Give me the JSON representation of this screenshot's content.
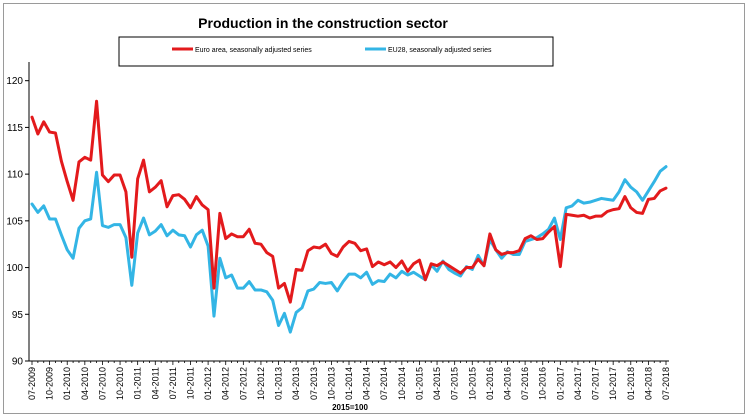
{
  "chart_data": {
    "type": "line",
    "title": "Production in the construction sector",
    "xlabel": "2015=100",
    "ylabel": "",
    "ylim": [
      90,
      122
    ],
    "yticks": [
      90,
      95,
      100,
      105,
      110,
      115,
      120
    ],
    "xtick_labels": [
      "07-2009",
      "10-2009",
      "01-2010",
      "04-2010",
      "07-2010",
      "10-2010",
      "01-2011",
      "04-2011",
      "07-2011",
      "10-2011",
      "01-2012",
      "04-2012",
      "07-2012",
      "10-2012",
      "01-2013",
      "04-2013",
      "07-2013",
      "10-2013",
      "01-2014",
      "04-2014",
      "07-2014",
      "10-2014",
      "01-2015",
      "04-2015",
      "07-2015",
      "10-2015",
      "01-2016",
      "04-2016",
      "07-2016",
      "10-2016",
      "01-2017",
      "04-2017",
      "07-2017",
      "10-2017",
      "01-2018",
      "04-2018",
      "07-2018"
    ],
    "grid": false,
    "legend_position": "top",
    "series": [
      {
        "name": "Euro area, seasonally adjusted series",
        "color": "#e31a1c",
        "values": [
          116.1,
          114.3,
          115.6,
          114.5,
          114.4,
          111.4,
          109.2,
          107.2,
          111.3,
          111.8,
          111.5,
          117.8,
          109.9,
          109.2,
          109.9,
          109.9,
          108.1,
          101.1,
          109.5,
          111.5,
          108.1,
          108.6,
          109.3,
          106.5,
          107.7,
          107.8,
          107.3,
          106.4,
          107.6,
          106.7,
          106.2,
          97.8,
          105.8,
          103.1,
          103.6,
          103.3,
          103.3,
          104.1,
          102.6,
          102.5,
          101.6,
          101.2,
          97.8,
          98.3,
          96.3,
          99.8,
          99.7,
          101.8,
          102.2,
          102.1,
          102.5,
          101.5,
          101.2,
          102.2,
          102.8,
          102.6,
          101.8,
          102.0,
          100.1,
          100.6,
          100.3,
          100.6,
          100.0,
          100.7,
          99.6,
          100.4,
          100.8,
          98.7,
          100.4,
          100.2,
          100.6,
          100.2,
          99.8,
          99.4,
          100.0,
          100.0,
          100.9,
          100.2,
          103.6,
          101.9,
          101.4,
          101.6,
          101.6,
          101.8,
          103.1,
          103.4,
          103.0,
          103.1,
          103.8,
          104.4,
          100.1,
          105.7,
          105.6,
          105.5,
          105.6,
          105.3,
          105.5,
          105.5,
          106.0,
          106.2,
          106.3,
          107.6,
          106.4,
          105.9,
          105.8,
          107.3,
          107.4,
          108.2,
          108.5
        ]
      },
      {
        "name": "EU28, seasonally adjusted series",
        "color": "#33b5e5",
        "values": [
          106.8,
          105.9,
          106.6,
          105.2,
          105.2,
          103.5,
          101.9,
          101.0,
          104.2,
          105.0,
          105.2,
          110.2,
          104.5,
          104.3,
          104.6,
          104.6,
          103.2,
          98.1,
          103.7,
          105.3,
          103.5,
          103.9,
          104.6,
          103.4,
          104.0,
          103.5,
          103.4,
          102.2,
          103.5,
          104.0,
          102.3,
          94.8,
          101.0,
          98.9,
          99.2,
          97.8,
          97.8,
          98.5,
          97.6,
          97.6,
          97.4,
          96.5,
          93.8,
          95.1,
          93.1,
          95.2,
          95.7,
          97.5,
          97.7,
          98.4,
          98.3,
          98.4,
          97.5,
          98.5,
          99.3,
          99.3,
          98.9,
          99.5,
          98.2,
          98.6,
          98.5,
          99.3,
          98.9,
          99.6,
          99.2,
          99.5,
          99.1,
          98.7,
          100.3,
          99.6,
          100.7,
          99.8,
          99.4,
          99.1,
          100.1,
          99.8,
          101.3,
          100.2,
          103.0,
          101.9,
          101.0,
          101.7,
          101.4,
          101.4,
          102.8,
          103.0,
          103.2,
          103.6,
          104.1,
          105.3,
          103.0,
          106.4,
          106.6,
          107.2,
          106.9,
          107.0,
          107.2,
          107.4,
          107.3,
          107.2,
          108.1,
          109.4,
          108.6,
          108.1,
          107.2,
          108.2,
          109.2,
          110.3,
          110.8
        ]
      }
    ]
  }
}
